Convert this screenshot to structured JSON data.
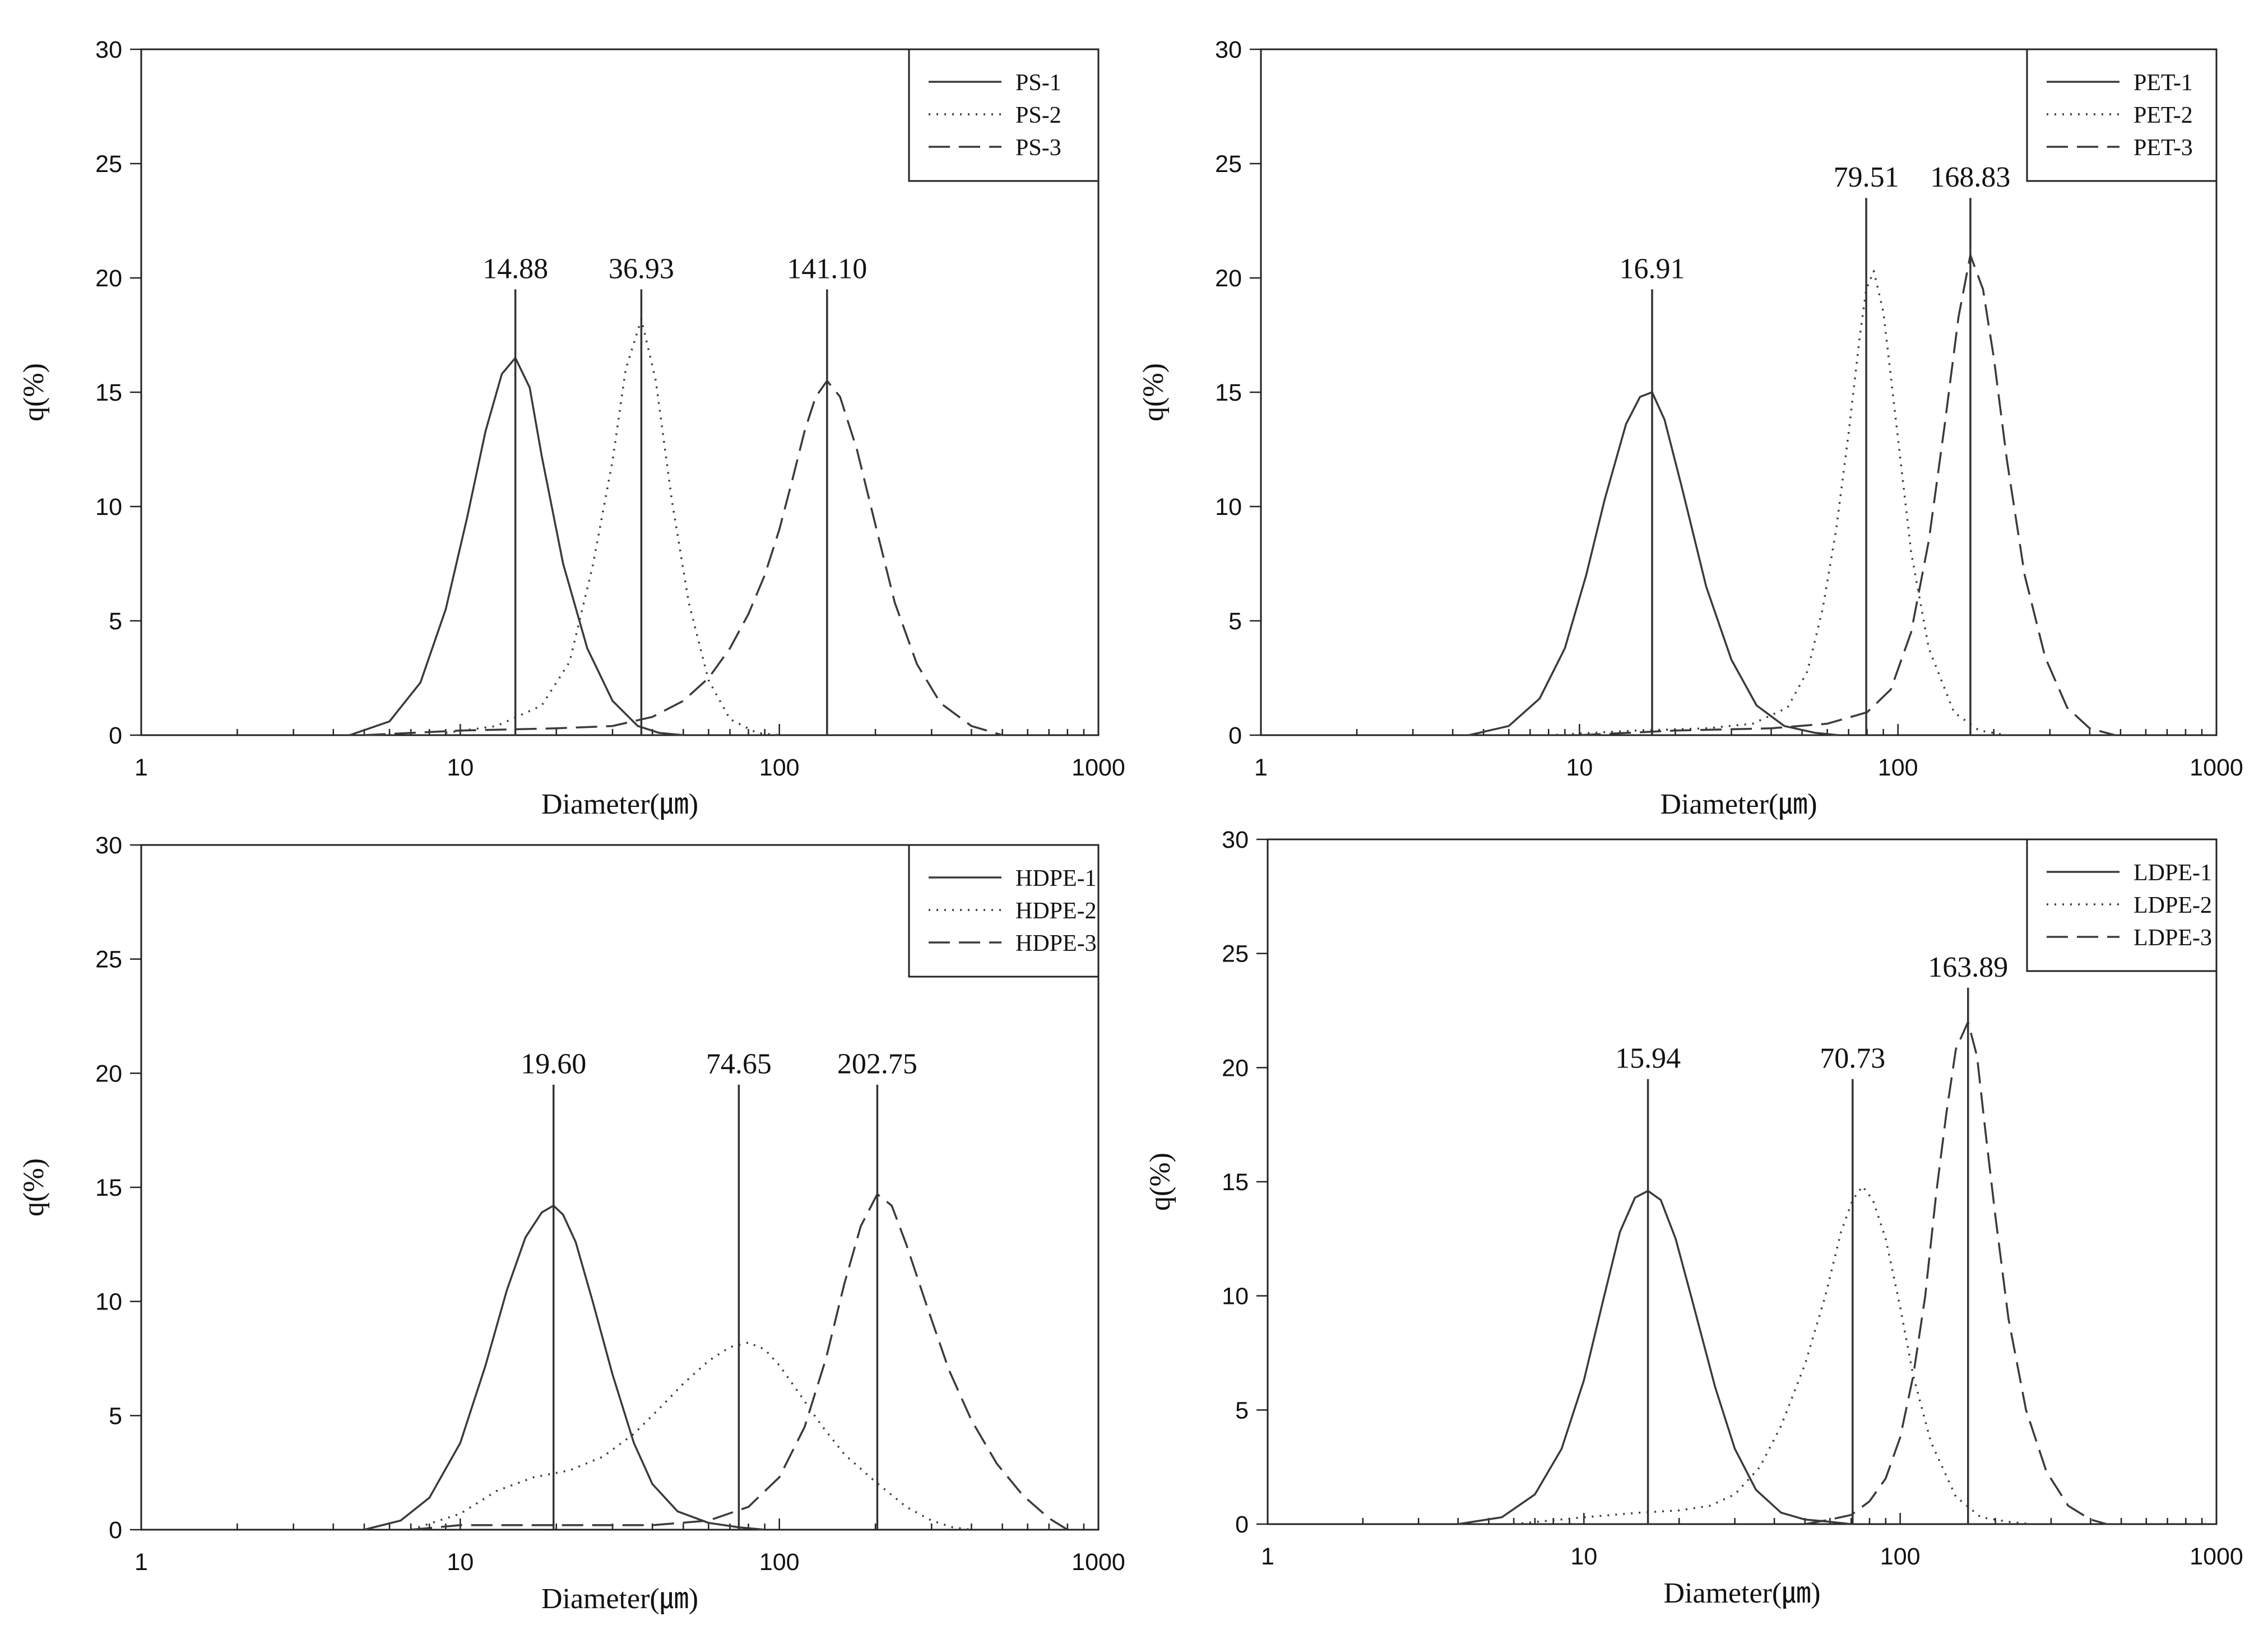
{
  "figure": {
    "background": "#ffffff",
    "line_color": "#3a3a3a"
  },
  "chart_data": [
    {
      "id": "ps",
      "type": "line",
      "x_scale": "log",
      "xlim": [
        1,
        1000
      ],
      "ylim": [
        0,
        30
      ],
      "xticks": [
        "1",
        "10",
        "100",
        "1000"
      ],
      "yticks": [
        "0",
        "5",
        "10",
        "15",
        "20",
        "25",
        "30"
      ],
      "xlabel": "Diameter(㎛)",
      "ylabel": "q(%)",
      "legend_position": "top-right",
      "series": [
        {
          "name": "PS-1",
          "style": "solid",
          "x": [
            4.5,
            6,
            7.5,
            9,
            10.5,
            12,
            13.5,
            14.88,
            16.5,
            18,
            21,
            25,
            30,
            36,
            42,
            50
          ],
          "y": [
            0,
            0.6,
            2.3,
            5.5,
            9.5,
            13.3,
            15.8,
            16.5,
            15.2,
            12.2,
            7.5,
            3.8,
            1.5,
            0.4,
            0.1,
            0
          ]
        },
        {
          "name": "PS-2",
          "style": "dotted",
          "x": [
            9,
            13,
            18,
            22,
            26,
            30,
            33,
            36.93,
            41,
            46,
            52,
            60,
            70,
            85,
            100
          ],
          "y": [
            0.1,
            0.4,
            1.3,
            3.2,
            7.4,
            12,
            16,
            18.2,
            15.5,
            10.3,
            5.8,
            2.4,
            0.7,
            0.1,
            0
          ]
        },
        {
          "name": "PS-3",
          "style": "dashed",
          "x": [
            5,
            10,
            20,
            30,
            40,
            50,
            60,
            70,
            80,
            90,
            100,
            110,
            120,
            130,
            141.1,
            155,
            175,
            200,
            230,
            270,
            320,
            400,
            500
          ],
          "y": [
            0,
            0.2,
            0.3,
            0.4,
            0.8,
            1.5,
            2.5,
            3.8,
            5.3,
            7.0,
            9.0,
            11.2,
            13.3,
            14.8,
            15.5,
            14.8,
            12.5,
            9.2,
            5.8,
            3.1,
            1.4,
            0.4,
            0
          ]
        }
      ],
      "annotations": [
        {
          "label": "14.88",
          "x": 14.88,
          "line_top": 19.5
        },
        {
          "label": "36.93",
          "x": 36.93,
          "line_top": 19.5
        },
        {
          "label": "141.10",
          "x": 141.1,
          "line_top": 19.5
        }
      ]
    },
    {
      "id": "pet",
      "type": "line",
      "x_scale": "log",
      "xlim": [
        1,
        1000
      ],
      "ylim": [
        0,
        30
      ],
      "xticks": [
        "1",
        "10",
        "100",
        "1000"
      ],
      "yticks": [
        "0",
        "5",
        "10",
        "15",
        "20",
        "25",
        "30"
      ],
      "xlabel": "Diameter(㎛)",
      "ylabel": "q(%)",
      "legend_position": "top-right",
      "series": [
        {
          "name": "PET-1",
          "style": "solid",
          "x": [
            4.5,
            6,
            7.5,
            9,
            10.5,
            12,
            14,
            15.5,
            16.91,
            18.5,
            21,
            25,
            30,
            36,
            44,
            55,
            65
          ],
          "y": [
            0,
            0.4,
            1.6,
            3.8,
            7.0,
            10.3,
            13.6,
            14.8,
            15.0,
            13.8,
            10.8,
            6.5,
            3.3,
            1.3,
            0.4,
            0.1,
            0
          ]
        },
        {
          "name": "PET-2",
          "style": "dotted",
          "x": [
            8,
            15,
            25,
            35,
            45,
            52,
            58,
            64,
            70,
            76,
            79.51,
            84,
            90,
            100,
            110,
            125,
            150,
            180,
            220
          ],
          "y": [
            0,
            0.2,
            0.3,
            0.5,
            1.2,
            2.8,
            5.5,
            9.0,
            13.2,
            17.5,
            19.5,
            20.3,
            18.5,
            13.0,
            8.0,
            3.8,
            1.0,
            0.2,
            0
          ]
        },
        {
          "name": "PET-3",
          "style": "dashed",
          "x": [
            10,
            20,
            40,
            60,
            80,
            95,
            110,
            125,
            140,
            155,
            168.83,
            185,
            200,
            220,
            250,
            290,
            340,
            400,
            480
          ],
          "y": [
            0,
            0.2,
            0.3,
            0.5,
            1.0,
            2.0,
            4.5,
            8.5,
            13.5,
            18.3,
            21.0,
            19.5,
            16.5,
            12.0,
            7.0,
            3.4,
            1.2,
            0.3,
            0
          ]
        }
      ],
      "annotations": [
        {
          "label": "16.91",
          "x": 16.91,
          "line_top": 19.5
        },
        {
          "label": "79.51",
          "x": 79.51,
          "line_top": 23.5
        },
        {
          "label": "168.83",
          "x": 168.83,
          "line_top": 23.5
        }
      ]
    },
    {
      "id": "hdpe",
      "type": "line",
      "x_scale": "log",
      "xlim": [
        1,
        1000
      ],
      "ylim": [
        0,
        30
      ],
      "xticks": [
        "1",
        "10",
        "100",
        "1000"
      ],
      "yticks": [
        "0",
        "5",
        "10",
        "15",
        "20",
        "25",
        "30"
      ],
      "xlabel": "Diameter(㎛)",
      "ylabel": "q(%)",
      "legend_position": "top-right",
      "series": [
        {
          "name": "HDPE-1",
          "style": "solid",
          "x": [
            5,
            6.5,
            8,
            10,
            12,
            14,
            16,
            18,
            19.6,
            21,
            23,
            26,
            30,
            35,
            40,
            48,
            60,
            75,
            90
          ],
          "y": [
            0,
            0.4,
            1.4,
            3.8,
            7.2,
            10.5,
            12.8,
            13.9,
            14.2,
            13.8,
            12.6,
            10.0,
            6.8,
            3.8,
            2.0,
            0.8,
            0.3,
            0.1,
            0
          ]
        },
        {
          "name": "HDPE-2",
          "style": "dotted",
          "x": [
            7,
            10,
            13,
            17,
            22,
            28,
            35,
            42,
            50,
            60,
            70,
            80,
            90,
            100,
            115,
            135,
            160,
            200,
            250,
            300,
            350,
            400
          ],
          "y": [
            0,
            0.7,
            1.7,
            2.3,
            2.6,
            3.2,
            4.2,
            5.3,
            6.4,
            7.4,
            8.0,
            8.2,
            7.9,
            7.2,
            6.0,
            4.6,
            3.3,
            2.1,
            1.0,
            0.4,
            0.1,
            0
          ]
        },
        {
          "name": "HDPE-3",
          "style": "dashed",
          "x": [
            7,
            10,
            20,
            40,
            60,
            80,
            100,
            120,
            140,
            160,
            180,
            202.75,
            225,
            250,
            290,
            340,
            400,
            480,
            580,
            700,
            800
          ],
          "y": [
            0,
            0.2,
            0.2,
            0.2,
            0.4,
            1.0,
            2.3,
            4.5,
            7.5,
            10.8,
            13.3,
            14.7,
            14.2,
            12.5,
            9.8,
            7.0,
            4.8,
            2.9,
            1.5,
            0.5,
            0
          ]
        }
      ],
      "annotations": [
        {
          "label": "19.60",
          "x": 19.6,
          "line_top": 19.5
        },
        {
          "label": "74.65",
          "x": 74.65,
          "line_top": 19.5
        },
        {
          "label": "202.75",
          "x": 202.75,
          "line_top": 19.5
        }
      ]
    },
    {
      "id": "ldpe",
      "type": "line",
      "x_scale": "log",
      "xlim": [
        1,
        1000
      ],
      "ylim": [
        0,
        30
      ],
      "xticks": [
        "1",
        "10",
        "100",
        "1000"
      ],
      "yticks": [
        "0",
        "5",
        "10",
        "15",
        "20",
        "25",
        "30"
      ],
      "xlabel": "Diameter(㎛)",
      "ylabel": "q(%)",
      "legend_position": "top-right",
      "series": [
        {
          "name": "LDPE-1",
          "style": "solid",
          "x": [
            4,
            5.5,
            7,
            8.5,
            10,
            11.5,
            13,
            14.5,
            15.94,
            17.5,
            19.5,
            22,
            26,
            30,
            35,
            42,
            50,
            60,
            70
          ],
          "y": [
            0,
            0.3,
            1.3,
            3.3,
            6.3,
            9.8,
            12.8,
            14.3,
            14.6,
            14.2,
            12.5,
            9.8,
            6.0,
            3.3,
            1.5,
            0.5,
            0.2,
            0.1,
            0
          ]
        },
        {
          "name": "LDPE-2",
          "style": "dotted",
          "x": [
            6,
            10,
            15,
            20,
            25,
            30,
            36,
            42,
            50,
            58,
            65,
            70.73,
            76,
            82,
            90,
            100,
            110,
            125,
            150,
            180,
            220,
            260
          ],
          "y": [
            0,
            0.3,
            0.5,
            0.6,
            0.8,
            1.3,
            2.5,
            4.3,
            7.0,
            10.0,
            12.8,
            14.2,
            14.8,
            14.2,
            12.5,
            9.5,
            6.5,
            3.6,
            1.2,
            0.3,
            0.1,
            0
          ]
        },
        {
          "name": "LDPE-3",
          "style": "dashed",
          "x": [
            50,
            60,
            70,
            80,
            90,
            100,
            110,
            120,
            130,
            140,
            150,
            163.89,
            175,
            185,
            200,
            220,
            250,
            290,
            340,
            400,
            450
          ],
          "y": [
            0,
            0.2,
            0.4,
            1.0,
            2.0,
            3.8,
            6.5,
            10.0,
            14.5,
            18.0,
            20.8,
            22.0,
            20.5,
            17.5,
            13.5,
            9.0,
            5.0,
            2.3,
            0.8,
            0.2,
            0
          ]
        }
      ],
      "annotations": [
        {
          "label": "15.94",
          "x": 15.94,
          "line_top": 19.5
        },
        {
          "label": "70.73",
          "x": 70.73,
          "line_top": 19.5
        },
        {
          "label": "163.89",
          "x": 163.89,
          "line_top": 23.5
        }
      ]
    }
  ]
}
